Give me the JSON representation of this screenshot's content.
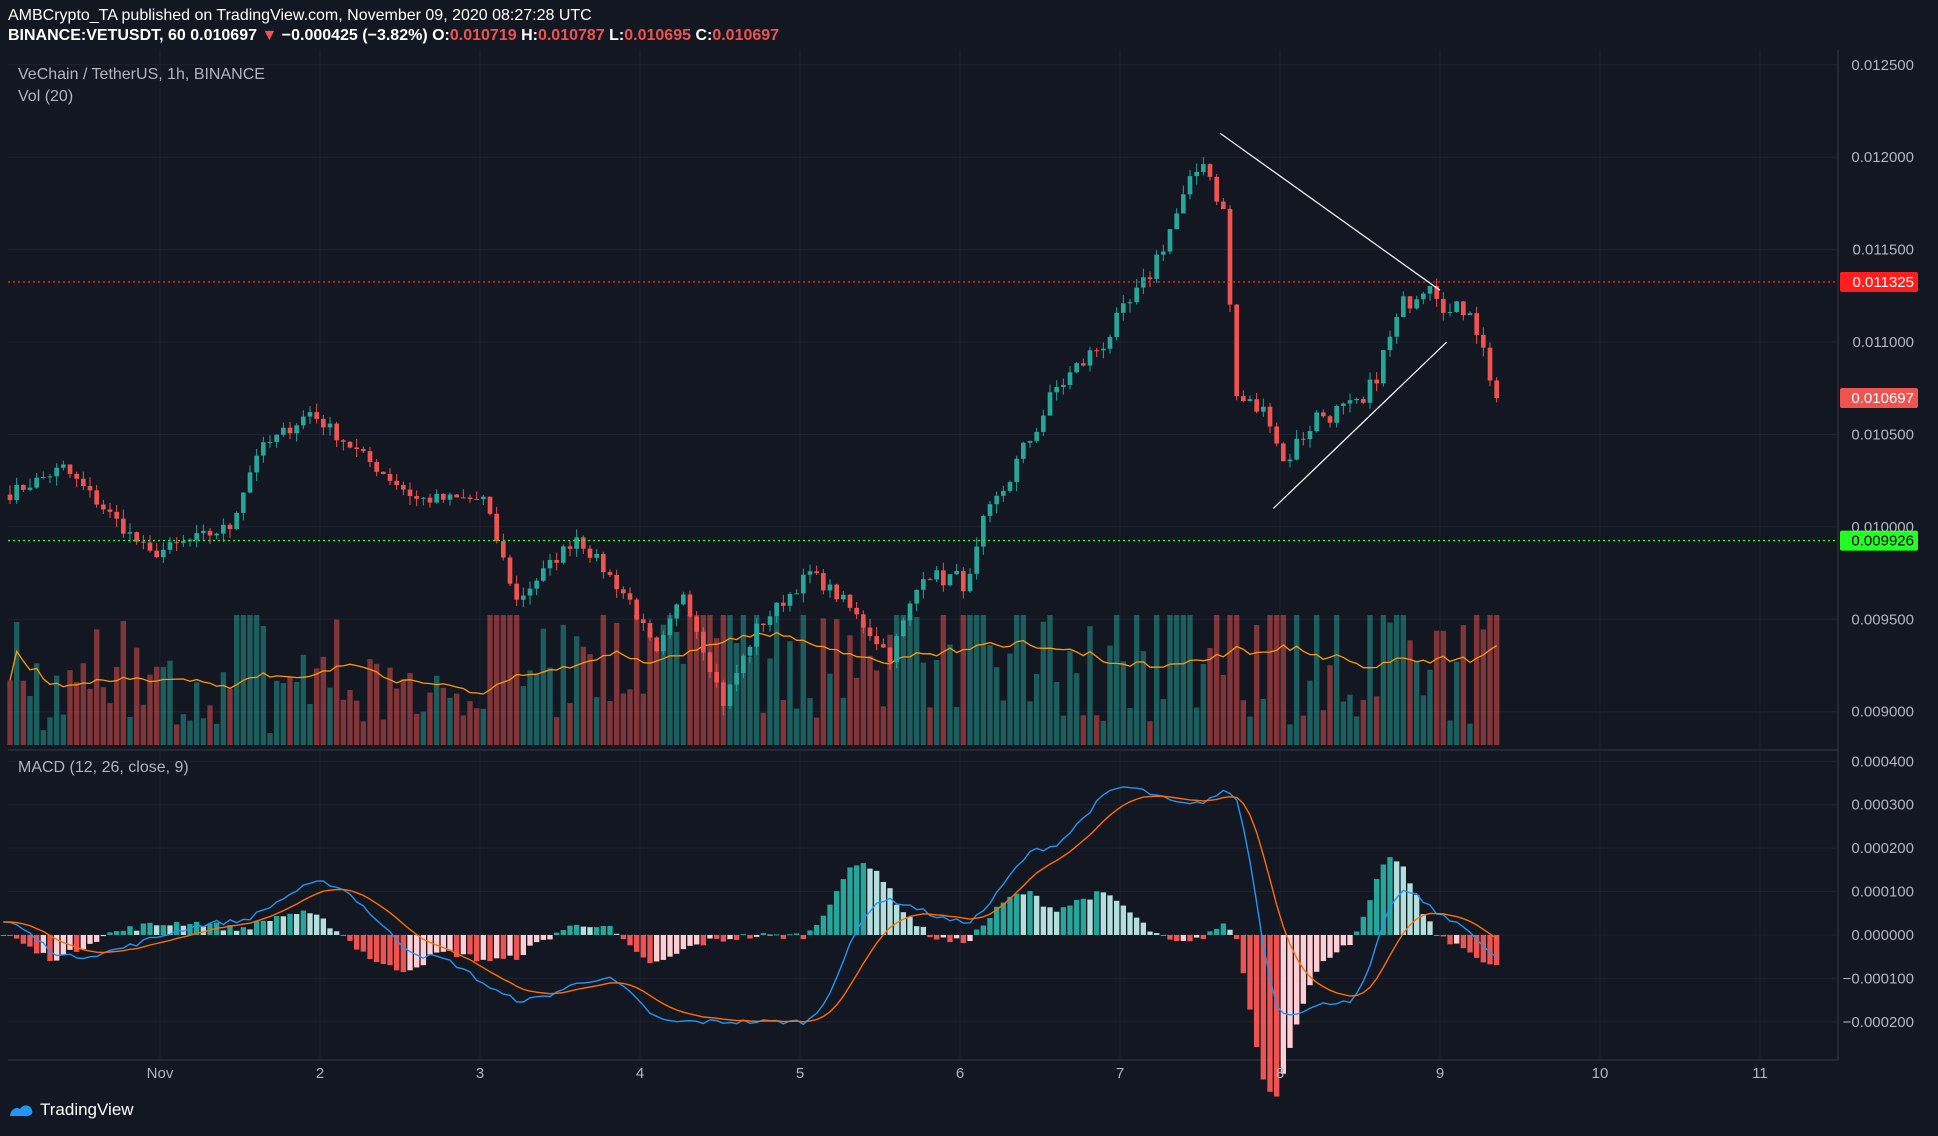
{
  "header": {
    "published": "AMBCrypto_TA published on TradingView.com, November 09, 2020 08:27:28 UTC",
    "symbol": "BINANCE:VETUSDT, 60",
    "last": "0.010697",
    "arrow": "▼",
    "change": "−0.000425 (−3.82%)",
    "o_label": "O:",
    "o_val": "0.010719",
    "h_label": "H:",
    "h_val": "0.010787",
    "l_label": "L:",
    "l_val": "0.010695",
    "c_label": "C:",
    "c_val": "0.010697"
  },
  "legend": {
    "pair": "VeChain / TetherUS, 1h, BINANCE",
    "volume": "Vol (20)",
    "macd": "MACD (12, 26, close, 9)"
  },
  "footer": {
    "brand": "TradingView"
  },
  "colors": {
    "background": "#131722",
    "grid": "#1e2230",
    "up": "#26a69a",
    "down": "#ef5350",
    "macd_line": "#2196f3",
    "signal_line": "#ff6d00",
    "vol_ma": "#ff9800",
    "resistance": "#ff1e1e",
    "support": "#22ff22",
    "triangle": "#ffffff"
  },
  "chart_data": [
    {
      "type": "candlestick",
      "y_axis_ticks": [
        "0.012500",
        "0.012000",
        "0.011500",
        "0.011000",
        "0.010500",
        "0.010000",
        "0.009500",
        "0.009000"
      ],
      "ylim": [
        0.00882,
        0.01258
      ],
      "x_ticks": [
        "Nov",
        "2",
        "3",
        "4",
        "5",
        "6",
        "7",
        "8",
        "9",
        "10",
        "11"
      ],
      "horizontal_levels": [
        {
          "value": 0.011325,
          "label": "0.011325",
          "style": "dotted",
          "color": "#ff1e1e"
        },
        {
          "value": 0.009926,
          "label": "0.009926",
          "style": "dotted",
          "color": "#22ff22"
        }
      ],
      "last_price_label": "0.010697",
      "anchor_points": [
        {
          "t": "Oct 31 01:00",
          "price": 0.01018
        },
        {
          "t": "Oct 31 09:00",
          "price": 0.01032
        },
        {
          "t": "Oct 31 22:00",
          "price": 0.00985
        },
        {
          "t": "Nov 01 10:00",
          "price": 0.01
        },
        {
          "t": "Nov 01 14:00",
          "price": 0.0104
        },
        {
          "t": "Nov 01 22:00",
          "price": 0.01062
        },
        {
          "t": "Nov 02 07:00",
          "price": 0.01035
        },
        {
          "t": "Nov 02 14:00",
          "price": 0.01015
        },
        {
          "t": "Nov 03 00:00",
          "price": 0.01015
        },
        {
          "t": "Nov 03 05:00",
          "price": 0.0096
        },
        {
          "t": "Nov 03 14:00",
          "price": 0.00995
        },
        {
          "t": "Nov 03 22:00",
          "price": 0.0096
        },
        {
          "t": "Nov 04 02:00",
          "price": 0.0093
        },
        {
          "t": "Nov 04 06:00",
          "price": 0.00965
        },
        {
          "t": "Nov 04 12:00",
          "price": 0.00905
        },
        {
          "t": "Nov 04 17:00",
          "price": 0.00945
        },
        {
          "t": "Nov 05 01:00",
          "price": 0.00975
        },
        {
          "t": "Nov 05 06:00",
          "price": 0.0096
        },
        {
          "t": "Nov 05 13:00",
          "price": 0.0093
        },
        {
          "t": "Nov 05 18:00",
          "price": 0.00975
        },
        {
          "t": "Nov 06 01:00",
          "price": 0.0097
        },
        {
          "t": "Nov 06 03:00",
          "price": 0.01
        },
        {
          "t": "Nov 06 14:00",
          "price": 0.01075
        },
        {
          "t": "Nov 06 21:00",
          "price": 0.011
        },
        {
          "t": "Nov 07 03:00",
          "price": 0.0113
        },
        {
          "t": "Nov 07 12:00",
          "price": 0.012
        },
        {
          "t": "Nov 07 15:00",
          "price": 0.0117
        },
        {
          "t": "Nov 07 17:00",
          "price": 0.0107
        },
        {
          "t": "Nov 07 22:00",
          "price": 0.0106
        },
        {
          "t": "Nov 08 00:00",
          "price": 0.01035
        },
        {
          "t": "Nov 08 05:00",
          "price": 0.0106
        },
        {
          "t": "Nov 08 12:00",
          "price": 0.01065
        },
        {
          "t": "Nov 08 18:00",
          "price": 0.0112
        },
        {
          "t": "Nov 08 22:00",
          "price": 0.01135
        },
        {
          "t": "Nov 09 01:00",
          "price": 0.01115
        },
        {
          "t": "Nov 09 04:00",
          "price": 0.0112
        },
        {
          "t": "Nov 09 08:00",
          "price": 0.010697
        }
      ],
      "triangle": {
        "upper": [
          {
            "t": "Nov 07 15:00",
            "price": 0.01213
          },
          {
            "t": "Nov 09 00:00",
            "price": 0.01128
          }
        ],
        "lower": [
          {
            "t": "Nov 07 23:00",
            "price": 0.0101
          },
          {
            "t": "Nov 09 01:00",
            "price": 0.011
          }
        ]
      },
      "volume_ma_period": 20
    },
    {
      "type": "macd",
      "params": "12, 26, close, 9",
      "y_axis_ticks": [
        "0.000400",
        "0.000300",
        "0.000200",
        "0.000100",
        "0.000000",
        "−0.000100",
        "−0.000200"
      ],
      "ylim": [
        -0.000265,
        0.00041
      ],
      "macd_anchor_points": [
        {
          "t": "Oct 31 00:00",
          "v": 3e-05
        },
        {
          "t": "Oct 31 10:00",
          "v": -5e-05
        },
        {
          "t": "Nov 01 10:00",
          "v": 3e-05
        },
        {
          "t": "Nov 02 00:00",
          "v": 0.00012
        },
        {
          "t": "Nov 02 16:00",
          "v": -5e-05
        },
        {
          "t": "Nov 03 06:00",
          "v": -0.00015
        },
        {
          "t": "Nov 03 18:00",
          "v": -0.0001
        },
        {
          "t": "Nov 04 04:00",
          "v": -0.0002
        },
        {
          "t": "Nov 05 00:00",
          "v": -0.0002
        },
        {
          "t": "Nov 05 12:00",
          "v": 8e-05
        },
        {
          "t": "Nov 06 00:00",
          "v": 3e-05
        },
        {
          "t": "Nov 06 12:00",
          "v": 0.0002
        },
        {
          "t": "Nov 07 00:00",
          "v": 0.00034
        },
        {
          "t": "Nov 07 10:00",
          "v": 0.0003
        },
        {
          "t": "Nov 07 16:00",
          "v": 0.00033
        },
        {
          "t": "Nov 08 00:00",
          "v": -0.00018
        },
        {
          "t": "Nov 08 10:00",
          "v": -0.00015
        },
        {
          "t": "Nov 08 18:00",
          "v": 0.0001
        },
        {
          "t": "Nov 09 02:00",
          "v": 3e-05
        },
        {
          "t": "Nov 09 08:00",
          "v": -5e-05
        }
      ]
    }
  ]
}
